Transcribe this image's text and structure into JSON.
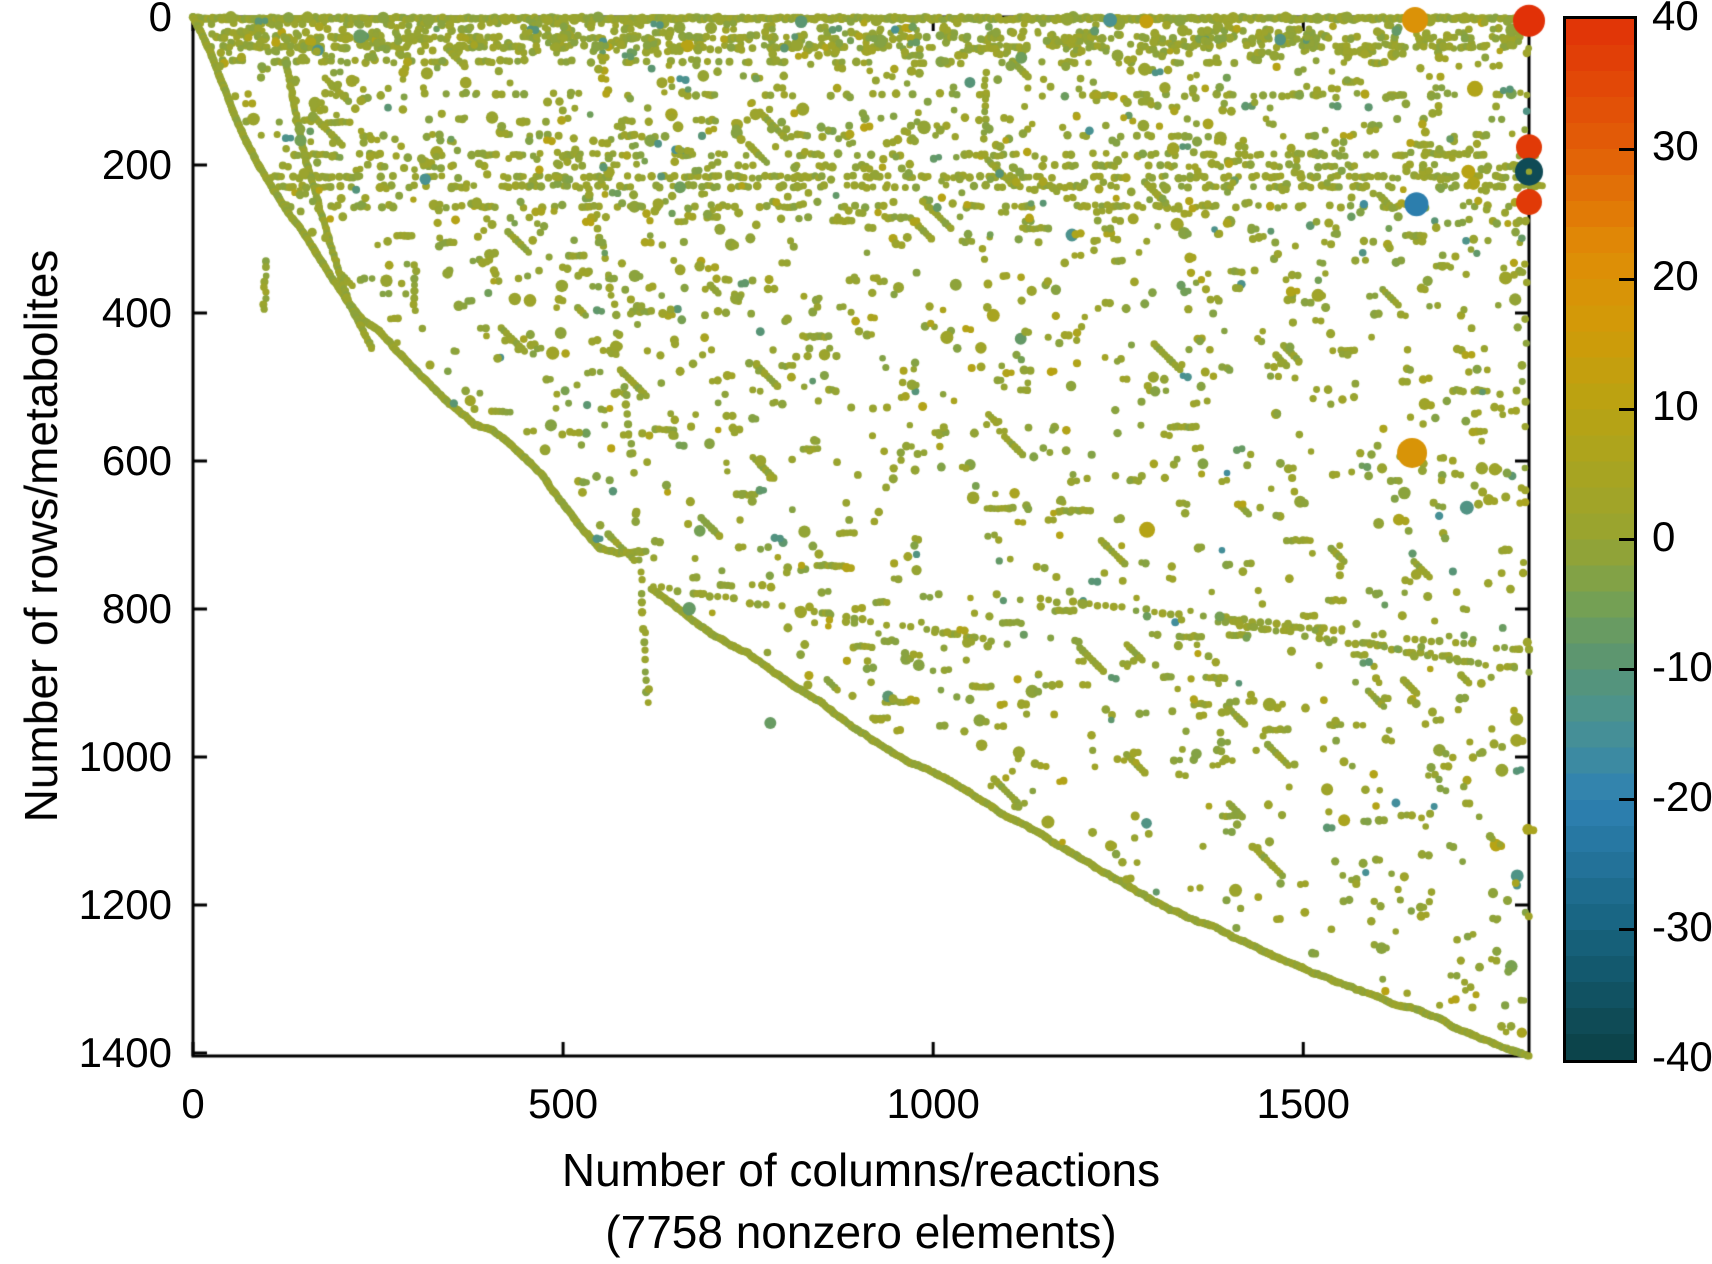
{
  "page": {
    "background": "#ffffff"
  },
  "chart_data": {
    "type": "scatter",
    "variant": "sparse-matrix-spy",
    "title": "",
    "xlabel": "Number of columns/reactions",
    "xlabel_note": "(7758 nonzero elements)",
    "ylabel": "Number of rows/metabolites",
    "nonzero_elements": 7758,
    "xlim": [
      0,
      1805
    ],
    "ylim": [
      0,
      1404
    ],
    "y_inverted": true,
    "x_ticks": [
      0,
      500,
      1000,
      1500
    ],
    "y_ticks": [
      0,
      200,
      400,
      600,
      800,
      1000,
      1200,
      1400
    ],
    "grid": false,
    "marker_base_color": "#94a433",
    "axis_color": "#000000",
    "colorbar": {
      "min": -40,
      "max": 40,
      "tick_values": [
        40,
        30,
        20,
        10,
        0,
        -10,
        -20,
        -30,
        -40
      ],
      "bands": 40,
      "position": "right"
    },
    "colormap_stops": [
      [
        -40,
        "#0b4045"
      ],
      [
        -30,
        "#17637f"
      ],
      [
        -20,
        "#2e81b2"
      ],
      [
        -14,
        "#4a9291"
      ],
      [
        -10,
        "#579476"
      ],
      [
        -5,
        "#74a054"
      ],
      [
        0,
        "#97a431"
      ],
      [
        6,
        "#aaa41f"
      ],
      [
        10,
        "#b8a313"
      ],
      [
        16,
        "#d09b08"
      ],
      [
        22,
        "#e08d06"
      ],
      [
        30,
        "#e25e07"
      ],
      [
        40,
        "#e13107"
      ]
    ],
    "structure": {
      "seed": 7,
      "envelope_upper": [
        [
          0,
          0
        ],
        [
          10,
          18
        ],
        [
          22,
          45
        ],
        [
          38,
          88
        ],
        [
          55,
          132
        ],
        [
          72,
          172
        ],
        [
          90,
          205
        ],
        [
          108,
          235
        ],
        [
          125,
          262
        ],
        [
          145,
          288
        ],
        [
          165,
          320
        ],
        [
          185,
          352
        ],
        [
          205,
          382
        ],
        [
          228,
          412
        ],
        [
          252,
          428
        ],
        [
          270,
          448
        ],
        [
          290,
          470
        ],
        [
          312,
          492
        ],
        [
          335,
          515
        ],
        [
          358,
          535
        ],
        [
          380,
          552
        ],
        [
          405,
          562
        ],
        [
          425,
          578
        ],
        [
          450,
          600
        ],
        [
          470,
          620
        ],
        [
          490,
          648
        ],
        [
          510,
          672
        ],
        [
          530,
          696
        ],
        [
          550,
          718
        ],
        [
          575,
          721
        ],
        [
          612,
          722
        ]
      ],
      "envelope_lower": [
        [
          619,
          773
        ],
        [
          660,
          800
        ],
        [
          700,
          830
        ],
        [
          746,
          856
        ],
        [
          800,
          898
        ],
        [
          850,
          930
        ],
        [
          888,
          959
        ],
        [
          920,
          980
        ],
        [
          955,
          1000
        ],
        [
          990,
          1018
        ],
        [
          1014,
          1031
        ],
        [
          1050,
          1052
        ],
        [
          1090,
          1077
        ],
        [
          1131,
          1099
        ],
        [
          1170,
          1122
        ],
        [
          1210,
          1145
        ],
        [
          1243,
          1166
        ],
        [
          1280,
          1186
        ],
        [
          1320,
          1208
        ],
        [
          1355,
          1225
        ],
        [
          1384,
          1234
        ],
        [
          1420,
          1252
        ],
        [
          1455,
          1270
        ],
        [
          1496,
          1284
        ],
        [
          1540,
          1305
        ],
        [
          1580,
          1320
        ],
        [
          1620,
          1335
        ],
        [
          1660,
          1342
        ],
        [
          1700,
          1360
        ],
        [
          1740,
          1378
        ],
        [
          1775,
          1392
        ],
        [
          1805,
          1402
        ]
      ],
      "early_diagonal": [
        [
          125,
          58
        ],
        [
          150,
          185
        ],
        [
          182,
          295
        ],
        [
          212,
          390
        ],
        [
          242,
          448
        ]
      ],
      "vertical_curve": {
        "knots": [
          [
            497,
            112
          ],
          [
            522,
            190
          ],
          [
            544,
            270
          ],
          [
            562,
            350
          ],
          [
            574,
            430
          ],
          [
            584,
            510
          ],
          [
            592,
            590
          ],
          [
            599,
            670
          ],
          [
            605,
            750
          ],
          [
            610,
            830
          ],
          [
            614,
            910
          ],
          [
            616,
            955
          ]
        ],
        "step": 14,
        "keep": 0.8
      },
      "shallow_lines": [
        {
          "pts": [
            [
              622,
              770
            ],
            [
              1100,
              846
            ]
          ],
          "step": 11,
          "keep": 0.72
        },
        {
          "pts": [
            [
              1145,
              787
            ],
            [
              1805,
              856
            ]
          ],
          "step": 11,
          "keep": 0.7
        },
        {
          "pts": [
            [
              1385,
              816
            ],
            [
              1805,
              884
            ]
          ],
          "step": 10,
          "keep": 0.75
        }
      ],
      "top_rows": [
        {
          "y": 2,
          "x0": 0,
          "x1": 1805,
          "step": 3.2,
          "keep": 0.97
        },
        {
          "y": 10,
          "x0": 0,
          "x1": 640,
          "step": 5,
          "keep": 0.3
        }
      ],
      "cluster_band": {
        "n": 200,
        "y0": 16,
        "y1": 48,
        "x0": 0,
        "x1": 1805
      },
      "bands": [
        {
          "y": 28,
          "x0": 5,
          "x1": 1805,
          "step": 6,
          "keep": 0.45
        },
        {
          "y": 40,
          "x0": 5,
          "x1": 1805,
          "step": 6,
          "keep": 0.35
        },
        {
          "y": 60,
          "x0": 40,
          "x1": 780,
          "step": 7,
          "keep": 0.4
        },
        {
          "y": 62,
          "x0": 800,
          "x1": 1805,
          "step": 8,
          "keep": 0.22
        },
        {
          "y": 105,
          "x0": 150,
          "x1": 1805,
          "step": 9,
          "keep": 0.25
        },
        {
          "y": 140,
          "x0": 60,
          "x1": 700,
          "step": 9,
          "keep": 0.22
        },
        {
          "y": 160,
          "x0": 230,
          "x1": 1805,
          "step": 10,
          "keep": 0.18
        },
        {
          "y": 186,
          "x0": 120,
          "x1": 1805,
          "step": 7,
          "keep": 0.38
        },
        {
          "y": 201,
          "x0": 60,
          "x1": 1805,
          "step": 7,
          "keep": 0.3
        },
        {
          "y": 216,
          "x0": 60,
          "x1": 1805,
          "step": 6,
          "keep": 0.5
        },
        {
          "y": 229,
          "x0": 100,
          "x1": 1805,
          "step": 7,
          "keep": 0.42
        },
        {
          "y": 256,
          "x0": 100,
          "x1": 1805,
          "step": 7,
          "keep": 0.36
        },
        {
          "y": 271,
          "x0": 330,
          "x1": 1000,
          "step": 9,
          "keep": 0.2
        },
        {
          "y": 303,
          "x0": 650,
          "x1": 1805,
          "step": 10,
          "keep": 0.14
        },
        {
          "y": 355,
          "x0": 250,
          "x1": 900,
          "step": 10,
          "keep": 0.12
        },
        {
          "y": 450,
          "x0": 250,
          "x1": 1805,
          "step": 11,
          "keep": 0.12
        },
        {
          "y": 505,
          "x0": 700,
          "x1": 1805,
          "step": 11,
          "keep": 0.1
        },
        {
          "y": 560,
          "x0": 150,
          "x1": 700,
          "step": 11,
          "keep": 0.1
        },
        {
          "y": 620,
          "x0": 760,
          "x1": 1450,
          "step": 12,
          "keep": 0.1
        }
      ],
      "vertical_runs": [
        {
          "x": 1070,
          "y0": 75,
          "y1": 165,
          "step": 9,
          "keep": 0.9
        },
        {
          "x": 300,
          "y0": 335,
          "y1": 400,
          "step": 8,
          "keep": 0.9
        },
        {
          "x": 97,
          "y0": 330,
          "y1": 398,
          "step": 7,
          "keep": 0.9
        },
        {
          "x": 1801,
          "y0": 15,
          "y1": 660,
          "step": 26,
          "keep": 0.6
        }
      ],
      "dash_runs": {
        "n": 60,
        "len_min": 3,
        "len_max": 9,
        "step": 5
      },
      "diag_runs": {
        "n": 45,
        "len_min": 4,
        "len_max": 12,
        "step": 3.5
      },
      "scatter_regions": [
        {
          "n": 260,
          "y0": 6,
          "y1": 55
        },
        {
          "n": 300,
          "y0": 55,
          "y1": 170
        },
        {
          "n": 330,
          "y0": 170,
          "y1": 300
        },
        {
          "n": 300,
          "y0": 300,
          "y1": 480
        },
        {
          "n": 260,
          "y0": 480,
          "y1": 700
        },
        {
          "n": 230,
          "y0": 700,
          "y1": 950
        },
        {
          "n": 120,
          "y0": 950,
          "y1": 1150
        },
        {
          "n": 70,
          "y0": 1150,
          "y1": 1380
        }
      ]
    },
    "highlight_points": [
      {
        "x": 1651,
        "y": 4,
        "value": 20,
        "r": 13
      },
      {
        "x": 1805,
        "y": 5,
        "value": 40,
        "r": 16
      },
      {
        "x": 1805,
        "y": 176,
        "value": 38,
        "r": 13
      },
      {
        "x": 1805,
        "y": 209,
        "value": -37,
        "r": 14,
        "center_dot": true
      },
      {
        "x": 1805,
        "y": 250,
        "value": 38,
        "r": 13
      },
      {
        "x": 1653,
        "y": 253,
        "value": -21,
        "r": 12
      },
      {
        "x": 1647,
        "y": 589,
        "value": 19,
        "r": 15
      },
      {
        "x": 1721,
        "y": 663,
        "value": -12,
        "r": 7
      },
      {
        "x": 1289,
        "y": 693,
        "value": 9,
        "r": 8
      },
      {
        "x": 1239,
        "y": 4,
        "value": -14,
        "r": 7
      },
      {
        "x": 1288,
        "y": 6,
        "value": 13,
        "r": 7
      },
      {
        "x": 1626,
        "y": 19,
        "value": -8,
        "r": 5
      },
      {
        "x": 226,
        "y": 26,
        "value": -7,
        "r": 7
      },
      {
        "x": 1119,
        "y": 55,
        "value": -6,
        "r": 6
      },
      {
        "x": 658,
        "y": 230,
        "value": -6,
        "r": 6
      },
      {
        "x": 1732,
        "y": 97,
        "value": 8,
        "r": 8
      },
      {
        "x": 1723,
        "y": 209,
        "value": 10,
        "r": 7
      },
      {
        "x": 1387,
        "y": 810,
        "value": -5,
        "r": 5
      },
      {
        "x": 780,
        "y": 954,
        "value": -7,
        "r": 6
      }
    ]
  }
}
